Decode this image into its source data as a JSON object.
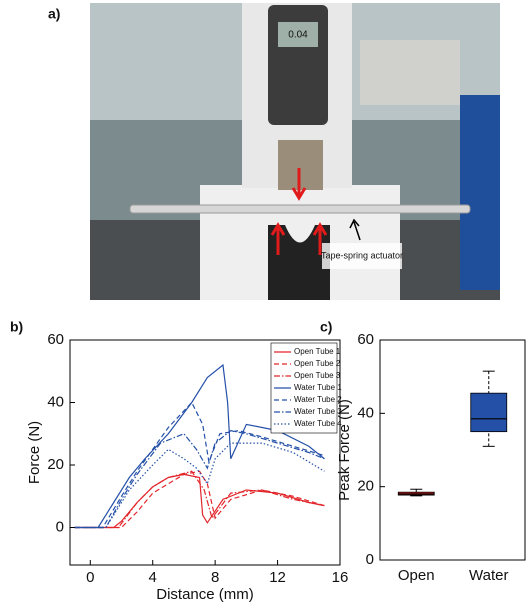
{
  "photo": {
    "label": "a)",
    "display_reading": "0.04",
    "annotation": "Tape-spring actuator"
  },
  "chart_data": [
    {
      "type": "line",
      "panel_label": "b)",
      "xlabel": "Distance (mm)",
      "ylabel": "Force (N)",
      "xlim": [
        -1.3,
        16
      ],
      "xticks": [
        0,
        4,
        8,
        12,
        16
      ],
      "ylim": [
        -12,
        60
      ],
      "yticks": [
        0,
        20,
        40,
        60
      ],
      "legend": "upper right",
      "series": [
        {
          "name": "Open Tube 1",
          "color": "#e3262b",
          "linestyle": "solid",
          "x": [
            -1,
            1.5,
            2,
            3,
            4,
            5,
            6,
            7,
            7.2,
            7.5,
            8.5,
            10,
            12,
            14,
            15
          ],
          "values": [
            0,
            0,
            2,
            8,
            13,
            16,
            17,
            16,
            4,
            1.5,
            9,
            12,
            11,
            8,
            7
          ]
        },
        {
          "name": "Open Tube 2",
          "color": "#e3262b",
          "linestyle": "dashed",
          "x": [
            -1,
            2,
            3,
            4,
            5,
            6,
            7,
            7.5,
            8,
            9,
            11,
            13,
            15
          ],
          "values": [
            0,
            0,
            5,
            11,
            14,
            17,
            18,
            14,
            3,
            9,
            12,
            10,
            7
          ]
        },
        {
          "name": "Open Tube 3",
          "color": "#e3262b",
          "linestyle": "dashdot",
          "x": [
            -1,
            1.8,
            3,
            4,
            5,
            6.5,
            7.3,
            7.8,
            9,
            11,
            13,
            15
          ],
          "values": [
            0,
            0,
            8,
            13,
            16,
            18,
            12,
            3,
            11,
            12,
            9,
            7
          ]
        },
        {
          "name": "Water Tube 1",
          "color": "#2450a8",
          "linestyle": "solid",
          "x": [
            -1,
            0.5,
            1.5,
            2.5,
            3.5,
            5,
            6.5,
            7.5,
            8.5,
            8.8,
            9,
            10,
            12,
            14,
            15
          ],
          "values": [
            0,
            0,
            8,
            16,
            22,
            30,
            40,
            48,
            52,
            40,
            22,
            33,
            31,
            26,
            22
          ]
        },
        {
          "name": "Water Tube 2",
          "color": "#2450a8",
          "linestyle": "dashed",
          "x": [
            -1,
            0.8,
            2,
            3,
            4,
            5,
            6.5,
            7.2,
            7.6,
            8.3,
            9.5,
            11,
            13,
            15
          ],
          "values": [
            0,
            0,
            10,
            18,
            25,
            32,
            40,
            33,
            21,
            30,
            31,
            29,
            26,
            23
          ]
        },
        {
          "name": "Water Tube 3",
          "color": "#2450a8",
          "linestyle": "dashdot",
          "x": [
            -1,
            1,
            2,
            3,
            4.5,
            6,
            6.8,
            7.5,
            8,
            9,
            10,
            12,
            14,
            15
          ],
          "values": [
            0,
            0,
            9,
            17,
            27,
            30,
            25,
            19,
            27,
            31,
            30,
            27,
            24,
            22
          ]
        },
        {
          "name": "Water Tube 4",
          "color": "#2450a8",
          "linestyle": "dotted",
          "x": [
            -1,
            1,
            2.5,
            4,
            5,
            6,
            6.8,
            7.5,
            8,
            9,
            11,
            13,
            15
          ],
          "values": [
            0,
            0,
            12,
            20,
            25,
            22,
            19,
            14,
            22,
            27,
            27,
            24,
            18
          ]
        }
      ]
    },
    {
      "type": "box",
      "panel_label": "c)",
      "ylabel": "Peak Force (N)",
      "ylim": [
        0,
        60
      ],
      "yticks": [
        0,
        20,
        40,
        60
      ],
      "categories": [
        "Open",
        "Water"
      ],
      "boxes": [
        {
          "color": "#e3262b",
          "min": 17.5,
          "q1": 17.7,
          "median": 18,
          "q3": 18.5,
          "max": 19.3
        },
        {
          "color": "#2450a8",
          "min": 31,
          "q1": 35,
          "median": 38.5,
          "q3": 45.5,
          "max": 51.5
        }
      ]
    }
  ]
}
